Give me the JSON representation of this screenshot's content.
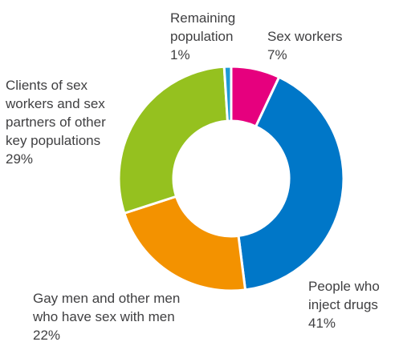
{
  "chart_data": {
    "type": "pie",
    "subtype": "donut",
    "title": "",
    "slices": [
      {
        "label_lines": [
          "Sex workers",
          "7%"
        ],
        "value": 7,
        "color": "#e6007e"
      },
      {
        "label_lines": [
          "People who",
          "inject drugs",
          "41%"
        ],
        "value": 41,
        "color": "#0077c8"
      },
      {
        "label_lines": [
          "Gay men and other men",
          "who have sex with men",
          "22%"
        ],
        "value": 22,
        "color": "#f39200"
      },
      {
        "label_lines": [
          "Clients of sex",
          "workers and sex",
          "partners of other",
          "key populations",
          "29%"
        ],
        "value": 29,
        "color": "#95c11f"
      },
      {
        "label_lines": [
          "Remaining",
          "population",
          "1%"
        ],
        "value": 1,
        "color": "#1d9ad6"
      }
    ]
  }
}
